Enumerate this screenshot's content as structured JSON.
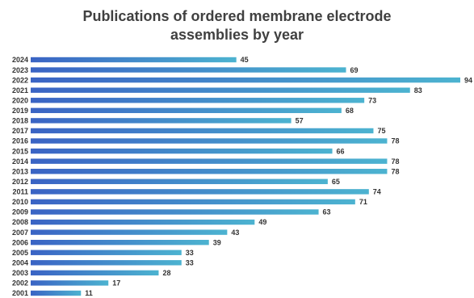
{
  "chart_data": {
    "type": "bar",
    "orientation": "horizontal",
    "title_lines": [
      "Publications of ordered membrane electrode",
      "assemblies by year"
    ],
    "title": "Publications of ordered membrane electrode assemblies by year",
    "xlabel": "",
    "ylabel": "",
    "categories": [
      "2024",
      "2023",
      "2022",
      "2021",
      "2020",
      "2019",
      "2018",
      "2017",
      "2016",
      "2015",
      "2014",
      "2013",
      "2012",
      "2011",
      "2010",
      "2009",
      "2008",
      "2007",
      "2006",
      "2005",
      "2004",
      "2003",
      "2002",
      "2001"
    ],
    "values": [
      45,
      69,
      94,
      83,
      73,
      68,
      57,
      75,
      78,
      66,
      78,
      78,
      65,
      74,
      71,
      63,
      49,
      43,
      39,
      33,
      33,
      28,
      17,
      11
    ],
    "xlim": [
      0,
      94
    ],
    "grid": false,
    "legend": "none",
    "data_labels": true,
    "colors": {
      "bar_start": "#3a63c4",
      "bar_end": "#4cb3d0",
      "text": "#333333",
      "title": "#404040"
    }
  }
}
